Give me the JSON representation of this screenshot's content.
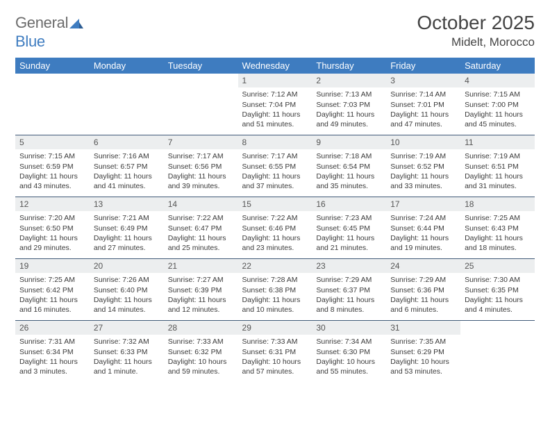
{
  "branding": {
    "logo_gray": "General",
    "logo_blue": "Blue",
    "logo_mark_color": "#3e7cc0"
  },
  "header": {
    "month_title": "October 2025",
    "location": "Midelt, Morocco"
  },
  "colors": {
    "header_bg": "#3e7cc0",
    "header_text": "#ffffff",
    "daynum_bg": "#eceeef",
    "row_divider": "#405a78",
    "body_text": "#3a3a3a",
    "title_text": "#444444"
  },
  "typography": {
    "title_fontsize": 28,
    "location_fontsize": 17,
    "dayhead_fontsize": 13,
    "daynum_fontsize": 12,
    "cell_fontsize": 10.5
  },
  "calendar": {
    "day_headers": [
      "Sunday",
      "Monday",
      "Tuesday",
      "Wednesday",
      "Thursday",
      "Friday",
      "Saturday"
    ],
    "weeks": [
      [
        {
          "empty": true
        },
        {
          "empty": true
        },
        {
          "empty": true
        },
        {
          "num": "1",
          "sunrise": "Sunrise: 7:12 AM",
          "sunset": "Sunset: 7:04 PM",
          "daylight": "Daylight: 11 hours and 51 minutes."
        },
        {
          "num": "2",
          "sunrise": "Sunrise: 7:13 AM",
          "sunset": "Sunset: 7:03 PM",
          "daylight": "Daylight: 11 hours and 49 minutes."
        },
        {
          "num": "3",
          "sunrise": "Sunrise: 7:14 AM",
          "sunset": "Sunset: 7:01 PM",
          "daylight": "Daylight: 11 hours and 47 minutes."
        },
        {
          "num": "4",
          "sunrise": "Sunrise: 7:15 AM",
          "sunset": "Sunset: 7:00 PM",
          "daylight": "Daylight: 11 hours and 45 minutes."
        }
      ],
      [
        {
          "num": "5",
          "sunrise": "Sunrise: 7:15 AM",
          "sunset": "Sunset: 6:59 PM",
          "daylight": "Daylight: 11 hours and 43 minutes."
        },
        {
          "num": "6",
          "sunrise": "Sunrise: 7:16 AM",
          "sunset": "Sunset: 6:57 PM",
          "daylight": "Daylight: 11 hours and 41 minutes."
        },
        {
          "num": "7",
          "sunrise": "Sunrise: 7:17 AM",
          "sunset": "Sunset: 6:56 PM",
          "daylight": "Daylight: 11 hours and 39 minutes."
        },
        {
          "num": "8",
          "sunrise": "Sunrise: 7:17 AM",
          "sunset": "Sunset: 6:55 PM",
          "daylight": "Daylight: 11 hours and 37 minutes."
        },
        {
          "num": "9",
          "sunrise": "Sunrise: 7:18 AM",
          "sunset": "Sunset: 6:54 PM",
          "daylight": "Daylight: 11 hours and 35 minutes."
        },
        {
          "num": "10",
          "sunrise": "Sunrise: 7:19 AM",
          "sunset": "Sunset: 6:52 PM",
          "daylight": "Daylight: 11 hours and 33 minutes."
        },
        {
          "num": "11",
          "sunrise": "Sunrise: 7:19 AM",
          "sunset": "Sunset: 6:51 PM",
          "daylight": "Daylight: 11 hours and 31 minutes."
        }
      ],
      [
        {
          "num": "12",
          "sunrise": "Sunrise: 7:20 AM",
          "sunset": "Sunset: 6:50 PM",
          "daylight": "Daylight: 11 hours and 29 minutes."
        },
        {
          "num": "13",
          "sunrise": "Sunrise: 7:21 AM",
          "sunset": "Sunset: 6:49 PM",
          "daylight": "Daylight: 11 hours and 27 minutes."
        },
        {
          "num": "14",
          "sunrise": "Sunrise: 7:22 AM",
          "sunset": "Sunset: 6:47 PM",
          "daylight": "Daylight: 11 hours and 25 minutes."
        },
        {
          "num": "15",
          "sunrise": "Sunrise: 7:22 AM",
          "sunset": "Sunset: 6:46 PM",
          "daylight": "Daylight: 11 hours and 23 minutes."
        },
        {
          "num": "16",
          "sunrise": "Sunrise: 7:23 AM",
          "sunset": "Sunset: 6:45 PM",
          "daylight": "Daylight: 11 hours and 21 minutes."
        },
        {
          "num": "17",
          "sunrise": "Sunrise: 7:24 AM",
          "sunset": "Sunset: 6:44 PM",
          "daylight": "Daylight: 11 hours and 19 minutes."
        },
        {
          "num": "18",
          "sunrise": "Sunrise: 7:25 AM",
          "sunset": "Sunset: 6:43 PM",
          "daylight": "Daylight: 11 hours and 18 minutes."
        }
      ],
      [
        {
          "num": "19",
          "sunrise": "Sunrise: 7:25 AM",
          "sunset": "Sunset: 6:42 PM",
          "daylight": "Daylight: 11 hours and 16 minutes."
        },
        {
          "num": "20",
          "sunrise": "Sunrise: 7:26 AM",
          "sunset": "Sunset: 6:40 PM",
          "daylight": "Daylight: 11 hours and 14 minutes."
        },
        {
          "num": "21",
          "sunrise": "Sunrise: 7:27 AM",
          "sunset": "Sunset: 6:39 PM",
          "daylight": "Daylight: 11 hours and 12 minutes."
        },
        {
          "num": "22",
          "sunrise": "Sunrise: 7:28 AM",
          "sunset": "Sunset: 6:38 PM",
          "daylight": "Daylight: 11 hours and 10 minutes."
        },
        {
          "num": "23",
          "sunrise": "Sunrise: 7:29 AM",
          "sunset": "Sunset: 6:37 PM",
          "daylight": "Daylight: 11 hours and 8 minutes."
        },
        {
          "num": "24",
          "sunrise": "Sunrise: 7:29 AM",
          "sunset": "Sunset: 6:36 PM",
          "daylight": "Daylight: 11 hours and 6 minutes."
        },
        {
          "num": "25",
          "sunrise": "Sunrise: 7:30 AM",
          "sunset": "Sunset: 6:35 PM",
          "daylight": "Daylight: 11 hours and 4 minutes."
        }
      ],
      [
        {
          "num": "26",
          "sunrise": "Sunrise: 7:31 AM",
          "sunset": "Sunset: 6:34 PM",
          "daylight": "Daylight: 11 hours and 3 minutes."
        },
        {
          "num": "27",
          "sunrise": "Sunrise: 7:32 AM",
          "sunset": "Sunset: 6:33 PM",
          "daylight": "Daylight: 11 hours and 1 minute."
        },
        {
          "num": "28",
          "sunrise": "Sunrise: 7:33 AM",
          "sunset": "Sunset: 6:32 PM",
          "daylight": "Daylight: 10 hours and 59 minutes."
        },
        {
          "num": "29",
          "sunrise": "Sunrise: 7:33 AM",
          "sunset": "Sunset: 6:31 PM",
          "daylight": "Daylight: 10 hours and 57 minutes."
        },
        {
          "num": "30",
          "sunrise": "Sunrise: 7:34 AM",
          "sunset": "Sunset: 6:30 PM",
          "daylight": "Daylight: 10 hours and 55 minutes."
        },
        {
          "num": "31",
          "sunrise": "Sunrise: 7:35 AM",
          "sunset": "Sunset: 6:29 PM",
          "daylight": "Daylight: 10 hours and 53 minutes."
        },
        {
          "empty": true
        }
      ]
    ]
  }
}
